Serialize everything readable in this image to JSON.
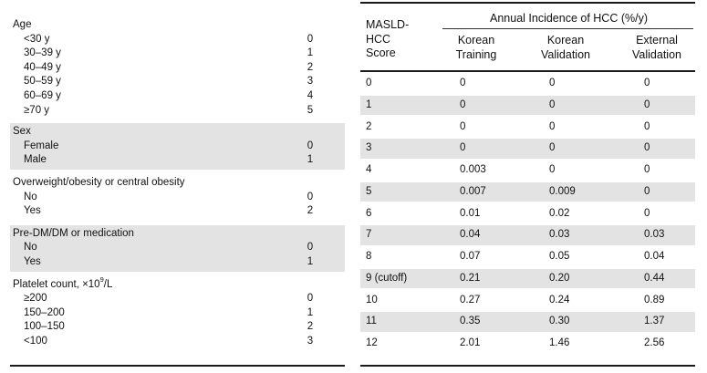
{
  "left_table": {
    "groups": [
      {
        "title": "Age",
        "shaded": false,
        "rows": [
          {
            "label": "<30 y",
            "score": "0"
          },
          {
            "label": "30–39 y",
            "score": "1"
          },
          {
            "label": "40–49 y",
            "score": "2"
          },
          {
            "label": "50–59 y",
            "score": "3"
          },
          {
            "label": "60–69 y",
            "score": "4"
          },
          {
            "label": "≥70 y",
            "score": "5"
          }
        ]
      },
      {
        "title": "Sex",
        "shaded": true,
        "rows": [
          {
            "label": "Female",
            "score": "0"
          },
          {
            "label": "Male",
            "score": "1"
          }
        ]
      },
      {
        "title": "Overweight/obesity or central obesity",
        "shaded": false,
        "rows": [
          {
            "label": "No",
            "score": "0"
          },
          {
            "label": "Yes",
            "score": "2"
          }
        ]
      },
      {
        "title": "Pre-DM/DM or medication",
        "shaded": true,
        "rows": [
          {
            "label": "No",
            "score": "0"
          },
          {
            "label": "Yes",
            "score": "1"
          }
        ]
      },
      {
        "title_prefix": "Platelet count, ×10",
        "title_sup": "9",
        "title_suffix": "/L",
        "shaded": false,
        "rows": [
          {
            "label": "≥200",
            "score": "0"
          },
          {
            "label": "150–200",
            "score": "1"
          },
          {
            "label": "100–150",
            "score": "2"
          },
          {
            "label": "<100",
            "score": "3"
          }
        ]
      }
    ]
  },
  "right_table": {
    "span_header": "Annual Incidence of HCC (%/y)",
    "score_header": [
      "MASLD-",
      "HCC",
      "Score"
    ],
    "col_headers": [
      [
        "Korean",
        "Training"
      ],
      [
        "Korean",
        "Validation"
      ],
      [
        "External",
        "Validation"
      ]
    ],
    "rows": [
      {
        "score": "0",
        "kt": "0",
        "kv": "0",
        "ev": "0",
        "shaded": false
      },
      {
        "score": "1",
        "kt": "0",
        "kv": "0",
        "ev": "0",
        "shaded": true
      },
      {
        "score": "2",
        "kt": "0",
        "kv": "0",
        "ev": "0",
        "shaded": false
      },
      {
        "score": "3",
        "kt": "0",
        "kv": "0",
        "ev": "0",
        "shaded": true
      },
      {
        "score": "4",
        "kt": "0.003",
        "kv": "0",
        "ev": "0",
        "shaded": false
      },
      {
        "score": "5",
        "kt": "0.007",
        "kv": "0.009",
        "ev": "0",
        "shaded": true
      },
      {
        "score": "6",
        "kt": "0.01",
        "kv": "0.02",
        "ev": "0",
        "shaded": false
      },
      {
        "score": "7",
        "kt": "0.04",
        "kv": "0.03",
        "ev": "0.03",
        "shaded": true
      },
      {
        "score": "8",
        "kt": "0.07",
        "kv": "0.05",
        "ev": "0.04",
        "shaded": false
      },
      {
        "score": "9 (cutoff)",
        "kt": "0.21",
        "kv": "0.20",
        "ev": "0.44",
        "shaded": true
      },
      {
        "score": "10",
        "kt": "0.27",
        "kv": "0.24",
        "ev": "0.89",
        "shaded": false
      },
      {
        "score": "11",
        "kt": "0.35",
        "kv": "0.30",
        "ev": "1.37",
        "shaded": true
      },
      {
        "score": "12",
        "kt": "2.01",
        "kv": "1.46",
        "ev": "2.56",
        "shaded": false
      }
    ]
  }
}
